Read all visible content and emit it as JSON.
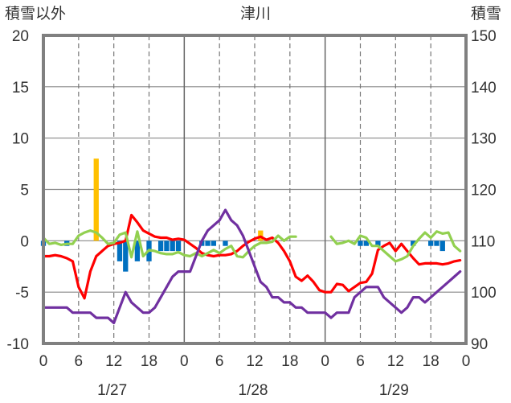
{
  "chart_data": {
    "type": "bar+line",
    "title": "津川",
    "left_axis": {
      "label": "積雪以外",
      "ylim": [
        -10,
        20
      ],
      "ticks": [
        "20",
        "15",
        "10",
        "5",
        "0",
        "-5",
        "-10"
      ]
    },
    "right_axis": {
      "label": "積雪",
      "ylim": [
        90,
        150
      ],
      "ticks": [
        "150",
        "140",
        "130",
        "120",
        "110",
        "100",
        "90"
      ]
    },
    "x_axis": {
      "hours": [
        0,
        3,
        6,
        9,
        12,
        15,
        18,
        21,
        24,
        27,
        30,
        33,
        36,
        39,
        42,
        45,
        48,
        51,
        54,
        57,
        60,
        63,
        66,
        69,
        72
      ],
      "tick_labels": [
        "0",
        "6",
        "12",
        "18",
        "0",
        "6",
        "12",
        "18",
        "0",
        "6",
        "12",
        "18",
        "0"
      ],
      "date_labels": [
        "1/27",
        "1/28",
        "1/29"
      ]
    },
    "grid": {
      "dashed_vertical_every_hours": 6,
      "solid_vertical_every_hours": 24,
      "horizontal_lines_at": [
        15,
        10,
        5,
        0,
        -5
      ]
    },
    "series": [
      {
        "type": "bar",
        "color": "#0070c0",
        "axis": "left",
        "x": [
          0,
          4,
          13,
          14,
          16,
          18,
          20,
          21,
          22,
          23,
          27,
          28,
          29,
          31,
          54,
          55,
          57,
          63,
          66,
          67,
          68
        ],
        "values": [
          -0.5,
          -0.5,
          -2,
          -3,
          -2,
          -2,
          -1,
          -1,
          -1,
          -1,
          -0.5,
          -0.5,
          -0.5,
          -0.5,
          -0.5,
          -0.5,
          -0.5,
          -0.5,
          -0.5,
          -0.5,
          -1
        ]
      },
      {
        "type": "bar",
        "color": "#ffc000",
        "axis": "left",
        "x": [
          9,
          37
        ],
        "values": [
          8,
          1
        ]
      },
      {
        "type": "line",
        "color": "#ff0000",
        "axis": "left",
        "x": [
          0,
          1,
          2,
          3,
          4,
          5,
          6,
          7,
          8,
          9,
          10,
          11,
          12,
          13,
          14,
          15,
          16,
          17,
          18,
          19,
          20,
          21,
          22,
          23,
          24,
          25,
          26,
          27,
          28,
          29,
          30,
          31,
          32,
          33,
          34,
          35,
          36,
          37,
          38,
          39,
          40,
          41,
          42,
          43,
          44,
          45,
          46,
          47,
          48,
          49,
          50,
          51,
          52,
          53,
          54,
          55,
          56,
          57,
          58,
          59,
          60,
          61,
          62,
          63,
          64,
          65,
          66,
          67,
          68,
          69,
          70,
          71
        ],
        "values": [
          -1.5,
          -1.5,
          -1.4,
          -1.5,
          -1.7,
          -2,
          -4.5,
          -5.6,
          -3,
          -1.5,
          -1,
          -0.5,
          -0.3,
          -0.2,
          0,
          2.5,
          1.8,
          1,
          0.7,
          0.4,
          0.3,
          0.3,
          0.1,
          0.2,
          0.1,
          -0.3,
          -0.7,
          -1.2,
          -1.4,
          -1.5,
          -1.4,
          -1.4,
          -1.3,
          -1,
          -0.5,
          -0.1,
          0.2,
          0.4,
          0.1,
          0.3,
          -0.2,
          -1,
          -2,
          -3.5,
          -3.9,
          -3.4,
          -4,
          -4.8,
          -5,
          -5,
          -4.2,
          -4.3,
          -4.9,
          -4.5,
          -4.1,
          -4,
          -3.2,
          -0.9,
          -0.5,
          -0.2,
          -1,
          -0.3,
          -1,
          -1.7,
          -2.3,
          -2.2,
          -2.2,
          -2.2,
          -2.3,
          -2.2,
          -2,
          -1.9
        ]
      },
      {
        "type": "line",
        "color": "#92d050",
        "axis": "left",
        "x": [
          0,
          1,
          2,
          3,
          4,
          5,
          6,
          7,
          8,
          9,
          10,
          11,
          12,
          13,
          14,
          15,
          16,
          17,
          18,
          19,
          20,
          21,
          22,
          23,
          24,
          25,
          26,
          27,
          28,
          29,
          30,
          31,
          32,
          33,
          34,
          35,
          36,
          37,
          38,
          39,
          40,
          41,
          42,
          43
        ],
        "values": [
          0.3,
          -0.3,
          -0.2,
          -0.4,
          -0.3,
          -0.3,
          0.5,
          0.8,
          1,
          0.8,
          0.3,
          -0.3,
          -0.2,
          0.6,
          0.8,
          -1.6,
          0.9,
          -1.5,
          -0.9,
          -1,
          -1.2,
          -1.3,
          -1.3,
          -1.1,
          -1.4,
          -1.5,
          -1.2,
          -1.5,
          -1.2,
          -0.9,
          -1.2,
          -0.8,
          -0.5,
          -1.5,
          -1.6,
          -1,
          -0.5,
          -0.2,
          -0.2,
          -0.1,
          0.5,
          0,
          0.4,
          0.4
        ]
      },
      {
        "type": "line",
        "color": "#92d050",
        "axis": "left",
        "x": [
          49,
          50,
          51,
          52,
          53,
          54,
          55,
          56,
          57,
          58,
          59,
          60,
          61,
          62,
          63,
          64,
          65,
          66,
          67,
          68,
          69,
          70,
          71
        ],
        "values": [
          0.4,
          -0.3,
          -0.2,
          0,
          -0.3,
          0.5,
          0.3,
          -0.5,
          -0.5,
          -1,
          -1.5,
          -2,
          -1.8,
          -1.5,
          -0.5,
          0.2,
          0.8,
          0.3,
          0.9,
          0.7,
          0.8,
          -0.5,
          -1
        ]
      },
      {
        "type": "line",
        "color": "#7030a0",
        "axis": "right",
        "x": [
          0,
          1,
          2,
          3,
          4,
          5,
          6,
          7,
          8,
          9,
          10,
          11,
          12,
          13,
          14,
          15,
          16,
          17,
          18,
          19,
          20,
          21,
          22,
          23,
          24,
          25,
          26,
          27,
          28,
          29,
          30,
          31,
          32,
          33,
          34,
          35,
          36,
          37,
          38,
          39,
          40,
          41,
          42,
          43,
          44,
          45,
          46,
          47,
          48,
          49,
          50,
          51,
          52,
          53,
          54,
          55,
          56,
          57,
          58,
          59,
          60,
          61,
          62,
          63,
          64,
          65,
          66,
          67,
          68,
          69,
          70,
          71
        ],
        "values": [
          97,
          97,
          97,
          97,
          97,
          96,
          96,
          96,
          96,
          95,
          95,
          95,
          94,
          97,
          100,
          98,
          97,
          96,
          96,
          97,
          99,
          101,
          103,
          104,
          104,
          104,
          107,
          110,
          112,
          113,
          114,
          116,
          114,
          113,
          111,
          108,
          105,
          102,
          101,
          99,
          99,
          98,
          98,
          97,
          97,
          96,
          96,
          96,
          96,
          95,
          96,
          96,
          96,
          99,
          100,
          101,
          101,
          101,
          99,
          98,
          97,
          96,
          97,
          99,
          99,
          98,
          99,
          100,
          101,
          102,
          103,
          104
        ]
      }
    ]
  }
}
